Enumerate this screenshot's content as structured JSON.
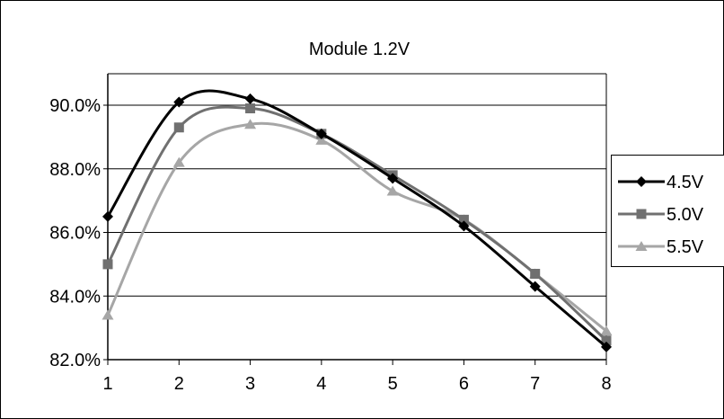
{
  "chart_data": {
    "type": "line",
    "title": "Module 1.2V",
    "xlabel": "",
    "ylabel": "",
    "x": [
      1,
      2,
      3,
      4,
      5,
      6,
      7,
      8
    ],
    "xlim": [
      1,
      8
    ],
    "xticks": [
      "1",
      "2",
      "3",
      "4",
      "5",
      "6",
      "7",
      "8"
    ],
    "ylim": [
      82.0,
      90.0
    ],
    "yticks": [
      "82.0%",
      "84.0%",
      "86.0%",
      "88.0%",
      "90.0%"
    ],
    "grid": true,
    "legend_position": "right",
    "series": [
      {
        "name": "4.5V",
        "color": "#000000",
        "marker": "diamond",
        "values": [
          86.5,
          90.1,
          90.2,
          89.1,
          87.7,
          86.2,
          84.3,
          82.4
        ]
      },
      {
        "name": "5.0V",
        "color": "#707070",
        "marker": "square",
        "values": [
          85.0,
          89.3,
          89.9,
          89.1,
          87.8,
          86.4,
          84.7,
          82.6
        ]
      },
      {
        "name": "5.5V",
        "color": "#a6a6a6",
        "marker": "triangle",
        "values": [
          83.4,
          88.2,
          89.4,
          88.9,
          87.3,
          86.4,
          84.7,
          82.9
        ]
      }
    ]
  }
}
